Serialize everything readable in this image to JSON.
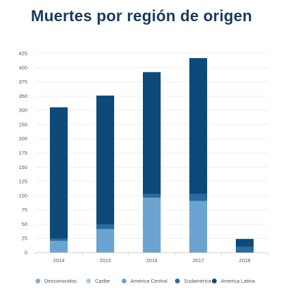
{
  "chart_data": {
    "type": "bar",
    "stacked": true,
    "title": "Muertes por región de origen",
    "categories": [
      "2014",
      "2015",
      "2016",
      "2017",
      "2018"
    ],
    "yticks": [
      "0",
      "25",
      "50",
      "75",
      "100",
      "125",
      "150",
      "175",
      "200",
      "250",
      "300",
      "350",
      "375",
      "400",
      "425"
    ],
    "series": [
      {
        "name": "Desconocidos",
        "color": "#7fb1d6",
        "values": [
          0,
          0,
          0,
          0,
          0
        ]
      },
      {
        "name": "Caribe",
        "color": "#a9c9e2",
        "values": [
          0,
          0,
          0,
          0,
          0
        ]
      },
      {
        "name": "América Central",
        "color": "#6ba4d0",
        "values": [
          25,
          50,
          117,
          110,
          0
        ]
      },
      {
        "name": "Sudamérica",
        "color": "#2a6aa0",
        "values": [
          5,
          10,
          8,
          15,
          12
        ]
      },
      {
        "name": "America Latina",
        "color": "#0d4a7a",
        "values": [
          280,
          275,
          260,
          290,
          17
        ]
      }
    ],
    "ylim": [
      0,
      425
    ],
    "grid": true,
    "legend_position": "bottom"
  }
}
